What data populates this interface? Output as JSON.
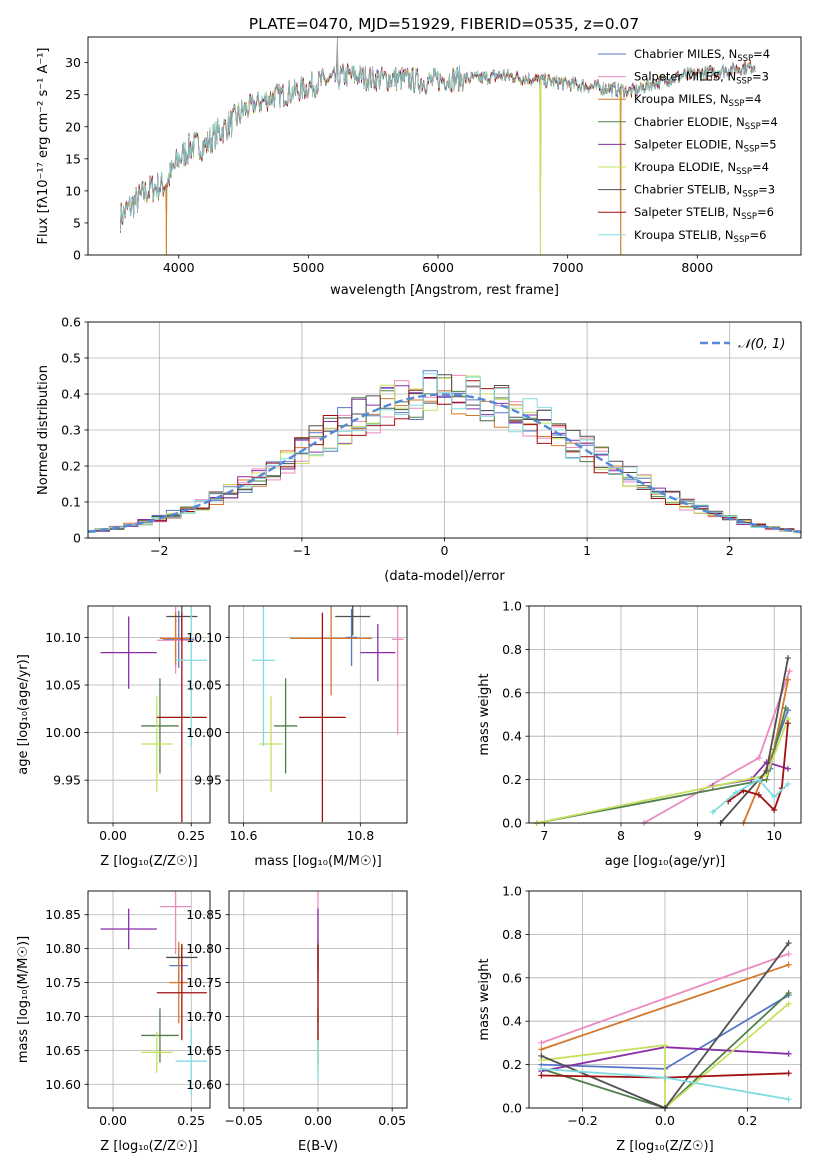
{
  "figure": {
    "title": "PLATE=0470, MJD=51929, FIBERID=0535, z=0.07"
  },
  "series_colors": [
    "#5877c6",
    "#eb8bc1",
    "#d4792e",
    "#4e7f4a",
    "#8a2ea6",
    "#c6e060",
    "#505050",
    "#a01010",
    "#80dce0"
  ],
  "chart_data": [
    {
      "id": "spectrum",
      "type": "line",
      "xlabel": "wavelength [Angstrom, rest frame]",
      "ylabel": "Flux [fλ10⁻¹⁷ erg cm⁻² s⁻¹ A⁻¹]",
      "xlim": [
        3300,
        8800
      ],
      "ylim": [
        0,
        34
      ],
      "xticks": [
        4000,
        5000,
        6000,
        7000,
        8000
      ],
      "yticks": [
        0,
        5,
        10,
        15,
        20,
        25,
        30
      ],
      "grid": false,
      "legend_placement": "top-right",
      "series_names": [
        "Chabrier MILES, N_SSP=4",
        "Salpeter MILES, N_SSP=3",
        "Kroupa MILES, N_SSP=4",
        "Chabrier ELODIE, N_SSP=4",
        "Salpeter ELODIE, N_SSP=5",
        "Kroupa ELODIE, N_SSP=4",
        "Chabrier STELIB, N_SSP=3",
        "Salpeter STELIB, N_SSP=6",
        "Kroupa STELIB, N_SSP=6"
      ],
      "legend": [
        {
          "name": "Chabrier MILES, N",
          "sub": "SSP",
          "val": "=4"
        },
        {
          "name": "Salpeter MILES, N",
          "sub": "SSP",
          "val": "=3"
        },
        {
          "name": "Kroupa MILES, N",
          "sub": "SSP",
          "val": "=4"
        },
        {
          "name": "Chabrier ELODIE, N",
          "sub": "SSP",
          "val": "=4"
        },
        {
          "name": "Salpeter ELODIE, N",
          "sub": "SSP",
          "val": "=5"
        },
        {
          "name": "Kroupa ELODIE, N",
          "sub": "SSP",
          "val": "=4"
        },
        {
          "name": "Chabrier STELIB, N",
          "sub": "SSP",
          "val": "=3"
        },
        {
          "name": "Salpeter STELIB, N",
          "sub": "SSP",
          "val": "=6"
        },
        {
          "name": "Kroupa STELIB, N",
          "sub": "SSP",
          "val": "=6"
        }
      ],
      "continuum": {
        "x": [
          3550,
          3700,
          3800,
          3900,
          4000,
          4100,
          4200,
          4300,
          4400,
          4500,
          4700,
          4900,
          5100,
          5300,
          5500,
          5700,
          5900,
          6100,
          6300,
          6500,
          6700,
          6900,
          7100,
          7300,
          7500,
          7700,
          7900,
          8100,
          8300,
          8450
        ],
        "y": [
          6,
          9,
          10.5,
          11,
          15,
          17,
          17,
          19,
          20.5,
          22.5,
          24.5,
          25.5,
          27,
          28,
          27.5,
          27.5,
          27,
          27.5,
          27.5,
          28,
          27.5,
          27,
          26.5,
          26,
          25.5,
          27,
          28,
          28.5,
          29,
          29.5
        ]
      },
      "sharp_drops": [
        {
          "x": 3905,
          "to": 0
        },
        {
          "x": 6790,
          "to": 0
        },
        {
          "x": 7410,
          "to": 0
        }
      ],
      "spike": {
        "x": 5225,
        "to": 34
      }
    },
    {
      "id": "residuals",
      "type": "histogram",
      "xlabel": "(data-model)/error",
      "ylabel": "Normed distribution",
      "xlim": [
        -2.5,
        2.5
      ],
      "ylim": [
        0,
        0.6
      ],
      "xticks": [
        -2,
        -1,
        0,
        1,
        2
      ],
      "yticks": [
        0,
        0.1,
        0.2,
        0.3,
        0.4,
        0.5,
        0.6
      ],
      "grid": true,
      "legend_placement": "top-right",
      "reference_curve": {
        "label": "𝒩(0, 1)",
        "type": "normal",
        "mean": 0,
        "sigma": 1
      },
      "bin_width": 0.1
    },
    {
      "id": "age-vs-Z",
      "type": "scatter",
      "xlabel": "Z [log₁₀(Z/Z☉)]",
      "ylabel": "age  [log₁₀(age/yr)]",
      "xlim": [
        -0.08,
        0.31
      ],
      "ylim": [
        9.905,
        10.133
      ],
      "xticks": [
        0,
        0.25
      ],
      "xtick_labels": [
        "0.00",
        "0.25"
      ],
      "yticks": [
        9.95,
        10.0,
        10.05,
        10.1
      ],
      "ytick_labels": [
        "9.95",
        "10.00",
        "10.05",
        "10.10"
      ],
      "grid": true,
      "points": [
        {
          "x": 0.21,
          "y": 10.098,
          "xerr": 0.05,
          "yerr": 0.03
        },
        {
          "x": 0.2,
          "y": 10.097,
          "xerr": 0.06,
          "yerr": 0.035
        },
        {
          "x": 0.2,
          "y": 10.099,
          "xerr": 0.05,
          "yerr": 0.028
        },
        {
          "x": 0.15,
          "y": 10.007,
          "xerr": 0.06,
          "yerr": 0.05
        },
        {
          "x": 0.05,
          "y": 10.084,
          "xerr": 0.09,
          "yerr": 0.038
        },
        {
          "x": 0.14,
          "y": 9.988,
          "xerr": 0.05,
          "yerr": 0.05
        },
        {
          "x": 0.22,
          "y": 10.122,
          "xerr": 0.05,
          "yerr": 0.02
        },
        {
          "x": 0.22,
          "y": 10.016,
          "xerr": 0.08,
          "yerr": 0.11
        },
        {
          "x": 0.25,
          "y": 10.076,
          "xerr": 0.05,
          "yerr": 0.09
        }
      ]
    },
    {
      "id": "age-vs-mass",
      "type": "scatter",
      "xlabel": "mass [log₁₀(M/M☉)]",
      "ylabel": "",
      "xlim": [
        10.575,
        10.88
      ],
      "ylim": [
        9.905,
        10.133
      ],
      "xticks": [
        10.6,
        10.8
      ],
      "xtick_labels": [
        "10.6",
        "10.8"
      ],
      "yticks": [
        9.95,
        10.0,
        10.05,
        10.1
      ],
      "ytick_labels": [
        "9.95",
        "10.00",
        "10.05",
        "10.10"
      ],
      "grid": true,
      "points": [
        {
          "x": 10.785,
          "y": 10.1,
          "xerr": 0.01,
          "yerr": 0.03
        },
        {
          "x": 10.864,
          "y": 10.098,
          "xerr": 0.01,
          "yerr": 0.1
        },
        {
          "x": 10.75,
          "y": 10.099,
          "xerr": 0.07,
          "yerr": 0.06
        },
        {
          "x": 10.672,
          "y": 10.007,
          "xerr": 0.02,
          "yerr": 0.05
        },
        {
          "x": 10.83,
          "y": 10.084,
          "xerr": 0.03,
          "yerr": 0.03
        },
        {
          "x": 10.647,
          "y": 9.988,
          "xerr": 0.02,
          "yerr": 0.05
        },
        {
          "x": 10.787,
          "y": 10.122,
          "xerr": 0.03,
          "yerr": 0.02
        },
        {
          "x": 10.735,
          "y": 10.016,
          "xerr": 0.04,
          "yerr": 0.11
        },
        {
          "x": 10.634,
          "y": 10.076,
          "xerr": 0.02,
          "yerr": 0.09
        }
      ]
    },
    {
      "id": "weight-vs-age",
      "type": "line",
      "xlabel": "age  [log₁₀(age/yr)]",
      "ylabel": "mass weight",
      "xlim": [
        6.8,
        10.35
      ],
      "ylim": [
        0,
        1.0
      ],
      "xticks": [
        7,
        8,
        9,
        10
      ],
      "yticks": [
        0,
        0.2,
        0.4,
        0.6,
        0.8,
        1.0
      ],
      "ytick_labels": [
        "0.0",
        "0.2",
        "0.4",
        "0.6",
        "0.8",
        "1.0"
      ],
      "grid": true,
      "series": [
        {
          "x": [
            9.95,
            10.0,
            10.18
          ],
          "y": [
            0.25,
            0.34,
            0.52
          ]
        },
        {
          "x": [
            8.3,
            9.8,
            10.2
          ],
          "y": [
            0.0,
            0.3,
            0.7
          ]
        },
        {
          "x": [
            9.6,
            10.0,
            10.18
          ],
          "y": [
            0.0,
            0.34,
            0.66
          ]
        },
        {
          "x": [
            6.9,
            9.9,
            10.15
          ],
          "y": [
            0.0,
            0.2,
            0.53
          ]
        },
        {
          "x": [
            9.2,
            9.7,
            9.9,
            10.18
          ],
          "y": [
            0.17,
            0.2,
            0.28,
            0.25
          ]
        },
        {
          "x": [
            6.9,
            9.9,
            10.18
          ],
          "y": [
            0.0,
            0.22,
            0.48
          ]
        },
        {
          "x": [
            9.3,
            9.9,
            10.18
          ],
          "y": [
            0.0,
            0.24,
            0.76
          ]
        },
        {
          "x": [
            9.4,
            9.6,
            9.8,
            10.0,
            10.1,
            10.18
          ],
          "y": [
            0.1,
            0.15,
            0.13,
            0.06,
            0.16,
            0.46
          ]
        },
        {
          "x": [
            9.2,
            9.5,
            9.8,
            10.0,
            10.18
          ],
          "y": [
            0.05,
            0.14,
            0.2,
            0.12,
            0.18
          ]
        }
      ]
    },
    {
      "id": "mass-vs-Z",
      "type": "scatter",
      "xlabel": "Z [log₁₀(Z/Z☉)]",
      "ylabel": "mass [log₁₀(M/M☉)]",
      "xlim": [
        -0.08,
        0.31
      ],
      "ylim": [
        10.565,
        10.885
      ],
      "xticks": [
        0,
        0.25
      ],
      "xtick_labels": [
        "0.00",
        "0.25"
      ],
      "yticks": [
        10.6,
        10.65,
        10.7,
        10.75,
        10.8,
        10.85
      ],
      "ytick_labels": [
        "10.60",
        "10.65",
        "10.70",
        "10.75",
        "10.80",
        "10.85"
      ],
      "grid": true,
      "points": [
        {
          "x": 0.21,
          "y": 10.775,
          "xerr": 0.03,
          "yerr": 0.025
        },
        {
          "x": 0.2,
          "y": 10.862,
          "xerr": 0.05,
          "yerr": 0.07
        },
        {
          "x": 0.21,
          "y": 10.75,
          "xerr": 0.03,
          "yerr": 0.06
        },
        {
          "x": 0.15,
          "y": 10.672,
          "xerr": 0.06,
          "yerr": 0.04
        },
        {
          "x": 0.05,
          "y": 10.829,
          "xerr": 0.09,
          "yerr": 0.03
        },
        {
          "x": 0.14,
          "y": 10.647,
          "xerr": 0.05,
          "yerr": 0.03
        },
        {
          "x": 0.22,
          "y": 10.787,
          "xerr": 0.05,
          "yerr": 0.02
        },
        {
          "x": 0.22,
          "y": 10.735,
          "xerr": 0.08,
          "yerr": 0.07
        },
        {
          "x": 0.25,
          "y": 10.634,
          "xerr": 0.05,
          "yerr": 0.05
        }
      ]
    },
    {
      "id": "mass-vs-EBV",
      "type": "scatter",
      "xlabel": "E(B-V)",
      "ylabel": "",
      "xlim": [
        -0.06,
        0.06
      ],
      "ylim": [
        10.565,
        10.885
      ],
      "xticks": [
        -0.05,
        0,
        0.05
      ],
      "xtick_labels": [
        "−0.05",
        "0.00",
        "0.05"
      ],
      "yticks": [
        10.6,
        10.65,
        10.7,
        10.75,
        10.8,
        10.85
      ],
      "ytick_labels": [
        "10.60",
        "10.65",
        "10.70",
        "10.75",
        "10.80",
        "10.85"
      ],
      "grid": true,
      "points": [
        {
          "x": 0,
          "y": 10.775,
          "xerr": 0,
          "yerr": 0.025
        },
        {
          "x": 0,
          "y": 10.862,
          "xerr": 0,
          "yerr": 0.07
        },
        {
          "x": 0,
          "y": 10.75,
          "xerr": 0,
          "yerr": 0.06
        },
        {
          "x": 0,
          "y": 10.672,
          "xerr": 0,
          "yerr": 0.04
        },
        {
          "x": 0,
          "y": 10.829,
          "xerr": 0,
          "yerr": 0.03
        },
        {
          "x": 0,
          "y": 10.647,
          "xerr": 0,
          "yerr": 0.03
        },
        {
          "x": 0,
          "y": 10.787,
          "xerr": 0,
          "yerr": 0.02
        },
        {
          "x": 0,
          "y": 10.735,
          "xerr": 0,
          "yerr": 0.07
        },
        {
          "x": 0,
          "y": 10.634,
          "xerr": 0,
          "yerr": 0.03
        }
      ]
    },
    {
      "id": "weight-vs-Z",
      "type": "line",
      "xlabel": "Z [log₁₀(Z/Z☉)]",
      "ylabel": "mass weight",
      "xlim": [
        -0.33,
        0.33
      ],
      "ylim": [
        0,
        1.0
      ],
      "xticks": [
        -0.2,
        0,
        0.2
      ],
      "xtick_labels": [
        "−0.2",
        "0.0",
        "0.2"
      ],
      "yticks": [
        0,
        0.2,
        0.4,
        0.6,
        0.8,
        1.0
      ],
      "ytick_labels": [
        "0.0",
        "0.2",
        "0.4",
        "0.6",
        "0.8",
        "1.0"
      ],
      "grid": true,
      "series": [
        {
          "x": [
            -0.3,
            0.0,
            0.3
          ],
          "y": [
            0.2,
            0.18,
            0.52
          ]
        },
        {
          "x": [
            -0.3,
            0.3
          ],
          "y": [
            0.3,
            0.71
          ]
        },
        {
          "x": [
            -0.3,
            0.3
          ],
          "y": [
            0.27,
            0.66
          ]
        },
        {
          "x": [
            -0.3,
            0.0,
            0.3
          ],
          "y": [
            0.18,
            0.0,
            0.53
          ]
        },
        {
          "x": [
            -0.3,
            0.0,
            0.3
          ],
          "y": [
            0.17,
            0.28,
            0.25
          ]
        },
        {
          "x": [
            -0.3,
            0.0,
            0.0,
            0.3
          ],
          "y": [
            0.22,
            0.29,
            0.0,
            0.48
          ]
        },
        {
          "x": [
            -0.3,
            0.0,
            0.3
          ],
          "y": [
            0.24,
            0.0,
            0.76
          ]
        },
        {
          "x": [
            -0.3,
            0.0,
            0.3
          ],
          "y": [
            0.15,
            0.14,
            0.16
          ]
        },
        {
          "x": [
            -0.3,
            0.0,
            0.3
          ],
          "y": [
            0.18,
            0.14,
            0.04
          ]
        }
      ]
    }
  ]
}
